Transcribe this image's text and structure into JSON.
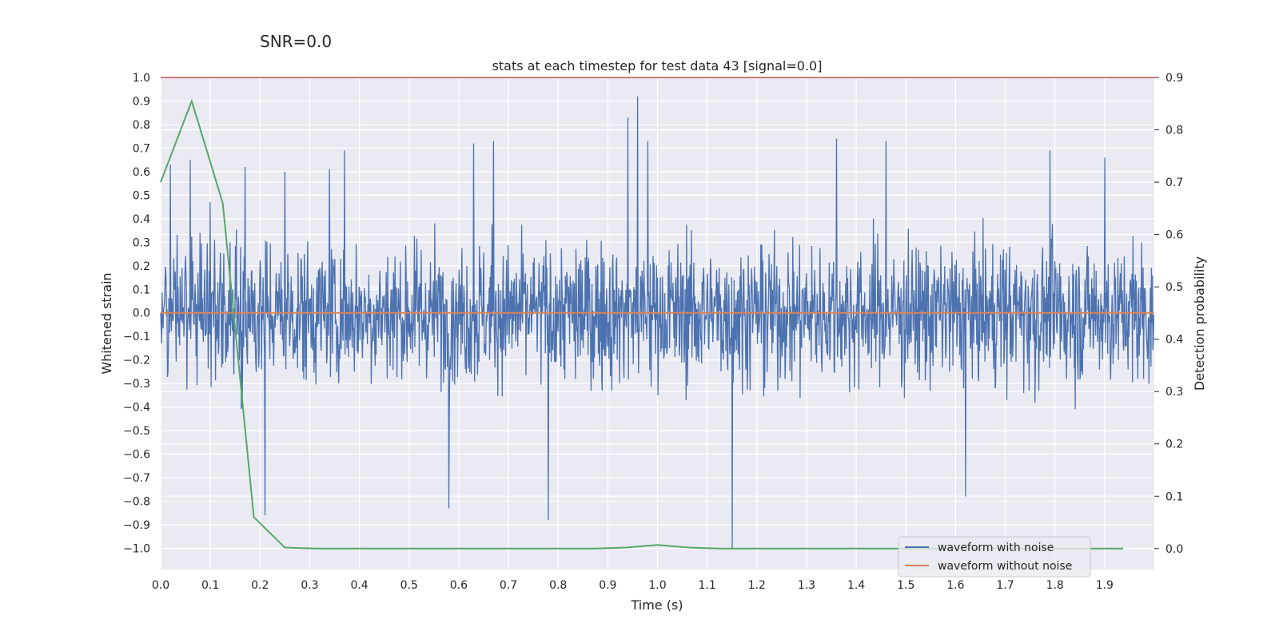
{
  "suptitle": "SNR=0.0",
  "chart_data": {
    "type": "line",
    "title": "stats at each timestep for test data 43 [signal=0.0]",
    "xlabel": "Time (s)",
    "ylabel": "Whitened strain",
    "y2label": "Detection probability",
    "xlim": [
      0.0,
      2.0
    ],
    "ylim": [
      -1.09,
      1.0
    ],
    "y2lim": [
      -0.04,
      0.9
    ],
    "x_ticks": [
      "0.0",
      "0.1",
      "0.2",
      "0.3",
      "0.4",
      "0.5",
      "0.6",
      "0.7",
      "0.8",
      "0.9",
      "1.0",
      "1.1",
      "1.2",
      "1.3",
      "1.4",
      "1.5",
      "1.6",
      "1.7",
      "1.8",
      "1.9"
    ],
    "y_ticks": [
      "1.0",
      "0.9",
      "0.8",
      "0.7",
      "0.6",
      "0.5",
      "0.4",
      "0.3",
      "0.2",
      "0.1",
      "0.0",
      "−0.1",
      "−0.2",
      "−0.3",
      "−0.4",
      "−0.5",
      "−0.6",
      "−0.7",
      "−0.8",
      "−0.9",
      "−1.0"
    ],
    "y2_ticks": [
      "0.9",
      "0.8",
      "0.7",
      "0.6",
      "0.5",
      "0.4",
      "0.3",
      "0.2",
      "0.1",
      "0.0"
    ],
    "grid": true,
    "legend_position": "lower-right",
    "series": [
      {
        "name": "waveform with noise",
        "axis": "left",
        "color": "#4c72b0",
        "description": "noisy whitened strain, approx. zero mean, spikes between -1.0 and 0.92",
        "spikes_x": [
          0.02,
          0.06,
          0.1,
          0.17,
          0.21,
          0.25,
          0.34,
          0.37,
          0.58,
          0.63,
          0.67,
          0.78,
          0.94,
          0.96,
          0.98,
          1.15,
          1.36,
          1.46,
          1.62,
          1.79,
          1.9
        ],
        "spikes_y": [
          0.63,
          0.65,
          0.47,
          0.62,
          -0.86,
          0.6,
          0.61,
          0.69,
          -0.83,
          0.72,
          0.73,
          -0.88,
          0.83,
          0.92,
          0.73,
          -1.0,
          0.74,
          0.73,
          -0.78,
          0.69,
          0.66
        ]
      },
      {
        "name": "waveform without noise",
        "axis": "left",
        "color": "#dd8452",
        "x": [
          0.0,
          2.0
        ],
        "y": [
          0.0,
          0.0
        ]
      },
      {
        "name": "",
        "axis": "right",
        "color": "#55a868",
        "x": [
          0.0,
          0.0625,
          0.125,
          0.1875,
          0.25,
          0.3125,
          0.375,
          0.4375,
          0.5,
          0.5625,
          0.625,
          0.6875,
          0.75,
          0.8125,
          0.875,
          0.9375,
          1.0,
          1.0625,
          1.125,
          1.1875,
          1.25,
          1.3125,
          1.375,
          1.4375,
          1.5,
          1.5625,
          1.625,
          1.6875,
          1.75,
          1.8125,
          1.875,
          1.9375
        ],
        "y": [
          0.7,
          0.855,
          0.66,
          0.06,
          0.002,
          0.0,
          0.0,
          0.0,
          0.0,
          0.0,
          0.0,
          0.0,
          0.0,
          0.0,
          0.0,
          0.002,
          0.007,
          0.002,
          0.0,
          0.0,
          0.0,
          0.0,
          0.0,
          0.0,
          0.0,
          0.0,
          0.0,
          0.0,
          0.0,
          0.0,
          0.0,
          0.0
        ]
      },
      {
        "name": "",
        "axis": "right",
        "color": "#c44e52",
        "x": [
          0.0,
          2.0
        ],
        "y": [
          0.9,
          0.9
        ]
      }
    ]
  }
}
